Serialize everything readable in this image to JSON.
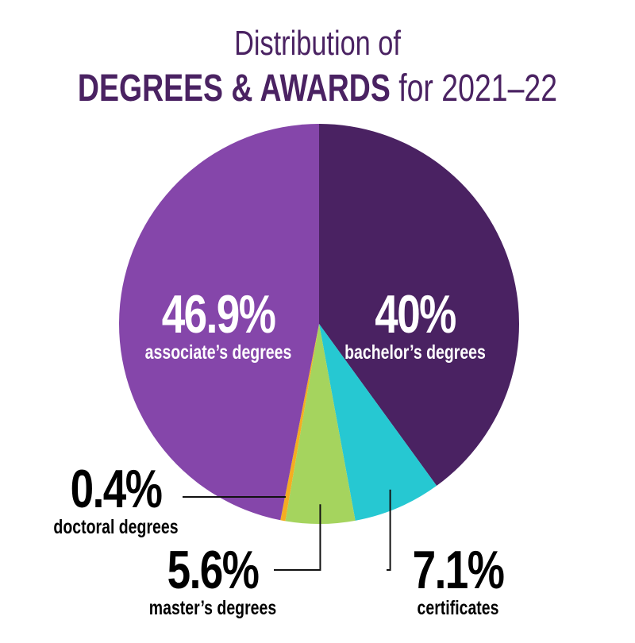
{
  "title": {
    "line1": "Distribution of",
    "line2_bold": "DEGREES & AWARDS",
    "line2_rest": " for 2021–22"
  },
  "chart_data": {
    "type": "pie",
    "title": "Distribution of DEGREES & AWARDS for 2021–22",
    "slices": [
      {
        "label": "bachelor’s degrees",
        "value": 40,
        "display": "40%",
        "color": "#4a2262"
      },
      {
        "label": "certificates",
        "value": 7.1,
        "display": "7.1%",
        "color": "#26c8d2"
      },
      {
        "label": "master’s degrees",
        "value": 5.6,
        "display": "5.6%",
        "color": "#a5d45e"
      },
      {
        "label": "doctoral degrees",
        "value": 0.4,
        "display": "0.4%",
        "color": "#f4ad22"
      },
      {
        "label": "associate’s degrees",
        "value": 46.9,
        "display": "46.9%",
        "color": "#8546aa"
      }
    ],
    "start": "top",
    "direction": "clockwise"
  }
}
